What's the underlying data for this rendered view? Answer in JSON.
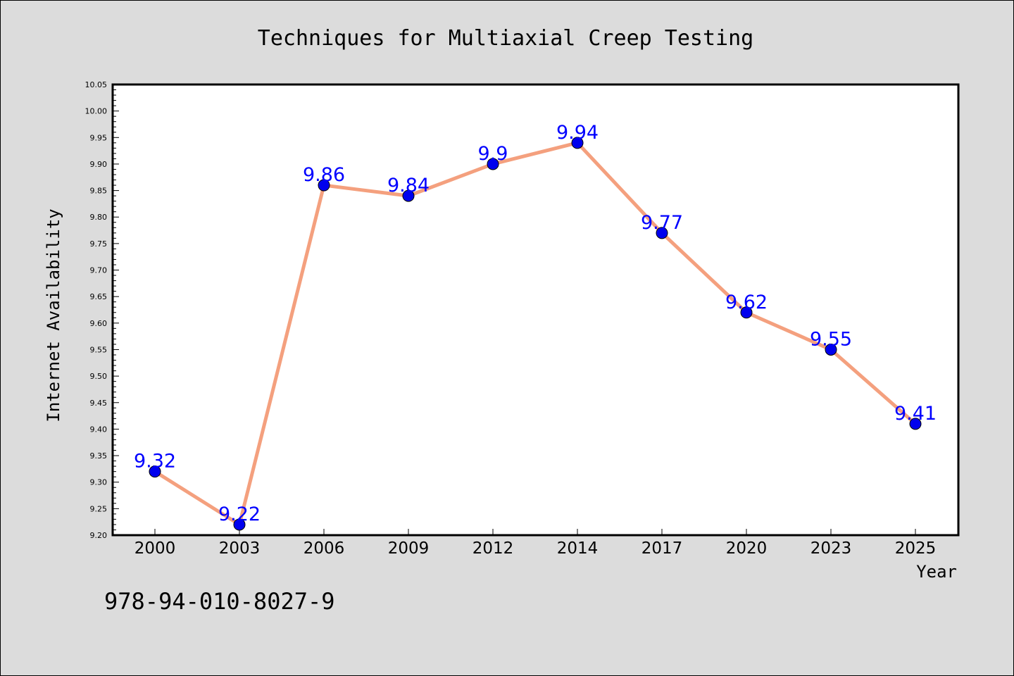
{
  "chart_data": {
    "type": "line",
    "title": "Techniques for Multiaxial Creep Testing",
    "xlabel": "Year",
    "ylabel": "Internet Availability",
    "categories": [
      "2000",
      "2003",
      "2006",
      "2009",
      "2012",
      "2014",
      "2017",
      "2020",
      "2023",
      "2025"
    ],
    "values": [
      9.32,
      9.22,
      9.86,
      9.84,
      9.9,
      9.94,
      9.77,
      9.62,
      9.55,
      9.41
    ],
    "value_labels": [
      "9.32",
      "9.22",
      "9.86",
      "9.84",
      "9.9",
      "9.94",
      "9.77",
      "9.62",
      "9.55",
      "9.41"
    ],
    "ylim": [
      9.2,
      10.05
    ],
    "yticks": [
      "9.20",
      "9.25",
      "9.30",
      "9.35",
      "9.40",
      "9.45",
      "9.50",
      "9.55",
      "9.60",
      "9.65",
      "9.70",
      "9.75",
      "9.80",
      "9.85",
      "9.90",
      "9.95",
      "10.00",
      "10.05"
    ],
    "grid": false,
    "line_color": "#f4a07e",
    "marker_color": "#0000ee",
    "label_color": "#0000ff"
  },
  "annotation": {
    "isbn": "978-94-010-8027-9"
  }
}
